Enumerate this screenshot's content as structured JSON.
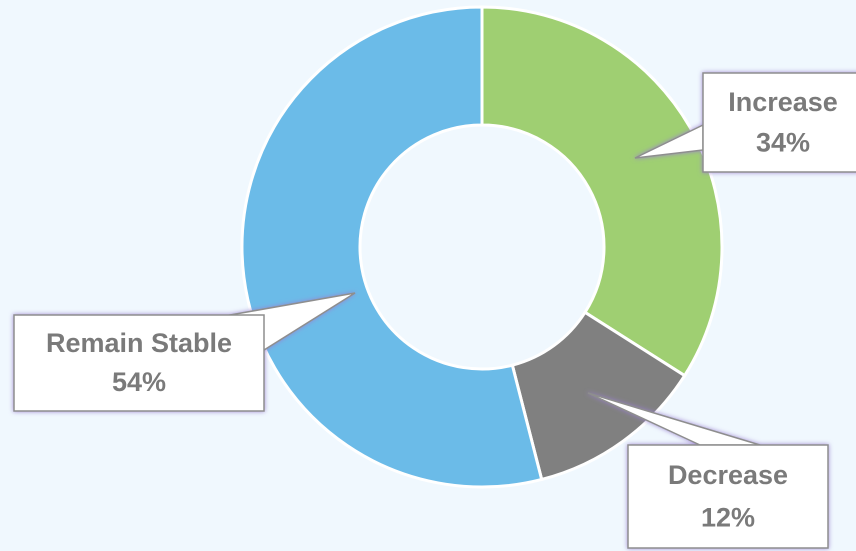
{
  "chart_data": {
    "type": "donut",
    "categories": [
      "Increase",
      "Decrease",
      "Remain Stable"
    ],
    "values": [
      34,
      12,
      54
    ],
    "value_labels": [
      "34%",
      "12%",
      "54%"
    ],
    "colors": [
      "#9fcf72",
      "#808080",
      "#6bbbe8"
    ]
  }
}
